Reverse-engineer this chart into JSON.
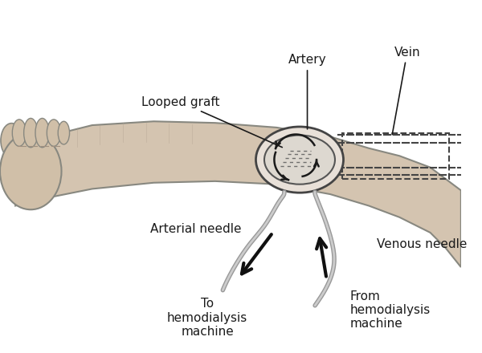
{
  "bg_color": "#f5f5f2",
  "text_color": "#1a1a1a",
  "arm_color": "#c8b8a2",
  "arm_shadow": "#a89880",
  "graft_color": "#888888",
  "needle_color": "#999999",
  "arrow_color": "#111111",
  "labels": {
    "looped_graft": "Looped graft",
    "artery": "Artery",
    "vein": "Vein",
    "arterial_needle": "Arterial needle",
    "venous_needle": "Venous needle",
    "to_hemo": "To\nhemodialysis\nmachine",
    "from_hemo": "From\nhemodialysis\nmachine"
  },
  "figsize": [
    6.0,
    4.4
  ],
  "dpi": 100
}
